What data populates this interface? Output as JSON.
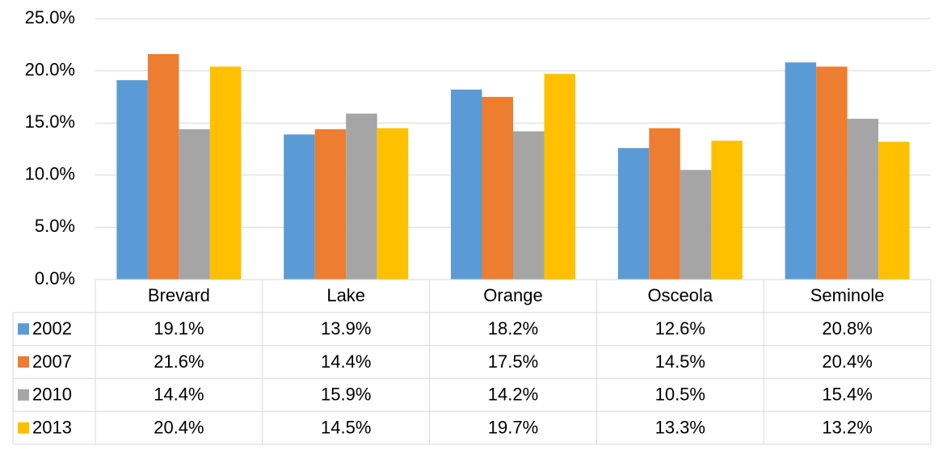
{
  "chart_data": {
    "type": "bar",
    "categories": [
      "Brevard",
      "Lake",
      "Orange",
      "Osceola",
      "Seminole"
    ],
    "series": [
      {
        "name": "2002",
        "color": "#5b9bd5",
        "values": [
          19.1,
          13.9,
          18.2,
          12.6,
          20.8
        ],
        "value_labels": [
          "19.1%",
          "13.9%",
          "18.2%",
          "12.6%",
          "20.8%"
        ]
      },
      {
        "name": "2007",
        "color": "#ed7d31",
        "values": [
          21.6,
          14.4,
          17.5,
          14.5,
          20.4
        ],
        "value_labels": [
          "21.6%",
          "14.4%",
          "17.5%",
          "14.5%",
          "20.4%"
        ]
      },
      {
        "name": "2010",
        "color": "#a5a5a5",
        "values": [
          14.4,
          15.9,
          14.2,
          10.5,
          15.4
        ],
        "value_labels": [
          "14.4%",
          "15.9%",
          "14.2%",
          "10.5%",
          "15.4%"
        ]
      },
      {
        "name": "2013",
        "color": "#ffc000",
        "values": [
          20.4,
          14.5,
          19.7,
          13.3,
          13.2
        ],
        "value_labels": [
          "20.4%",
          "14.5%",
          "19.7%",
          "13.3%",
          "13.2%"
        ]
      }
    ],
    "ylim": [
      0,
      25
    ],
    "yticks": [
      {
        "value": 0,
        "label": "0.0%"
      },
      {
        "value": 5,
        "label": "5.0%"
      },
      {
        "value": 10,
        "label": "10.0%"
      },
      {
        "value": 15,
        "label": "15.0%"
      },
      {
        "value": 20,
        "label": "20.0%"
      },
      {
        "value": 25,
        "label": "25.0%"
      }
    ],
    "grid": true
  }
}
